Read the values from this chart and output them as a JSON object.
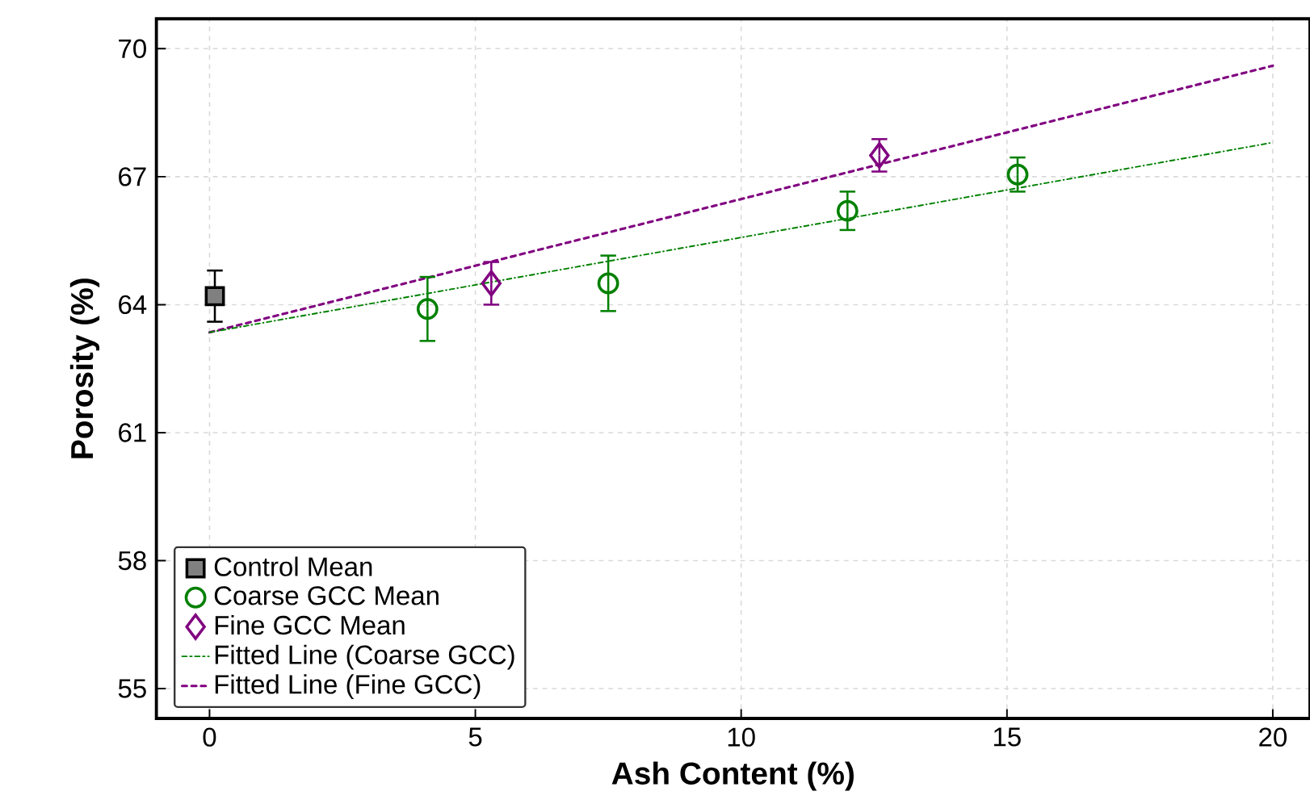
{
  "chart_data": {
    "type": "scatter",
    "xlabel": "Ash Content (%)",
    "ylabel": "Porosity (%)",
    "xlim": [
      -1,
      20.7
    ],
    "ylim": [
      54.3,
      70.7
    ],
    "xticks": [
      0,
      5,
      10,
      15,
      20
    ],
    "yticks": [
      55,
      58,
      61,
      64,
      67,
      70
    ],
    "grid": true,
    "legend": "bottom left",
    "series": [
      {
        "name": "Control Mean",
        "type": "scatter",
        "marker": "square",
        "color": "#808080",
        "x": [
          0.1
        ],
        "values": [
          64.2
        ],
        "errors": [
          0.6
        ]
      },
      {
        "name": "Coarse GCC Mean",
        "type": "scatter",
        "marker": "circle",
        "color": "#008000",
        "x": [
          4.1,
          7.5,
          12.0,
          15.2
        ],
        "values": [
          63.9,
          64.5,
          66.2,
          67.05
        ],
        "errors": [
          0.75,
          0.65,
          0.45,
          0.4
        ]
      },
      {
        "name": "Fine GCC Mean",
        "type": "scatter",
        "marker": "diamond",
        "color": "#800080",
        "x": [
          5.3,
          12.6
        ],
        "values": [
          64.5,
          67.5
        ],
        "errors": [
          0.5,
          0.38
        ]
      },
      {
        "name": "Fitted Line (Coarse GCC)",
        "type": "line",
        "line_style": "dashdot",
        "color": "#008000",
        "x": [
          0,
          20
        ],
        "values": [
          63.35,
          67.8
        ]
      },
      {
        "name": "Fitted Line (Fine GCC)",
        "type": "line",
        "line_style": "dashed",
        "color": "#800080",
        "x": [
          0,
          20
        ],
        "values": [
          63.35,
          69.6
        ]
      }
    ]
  }
}
